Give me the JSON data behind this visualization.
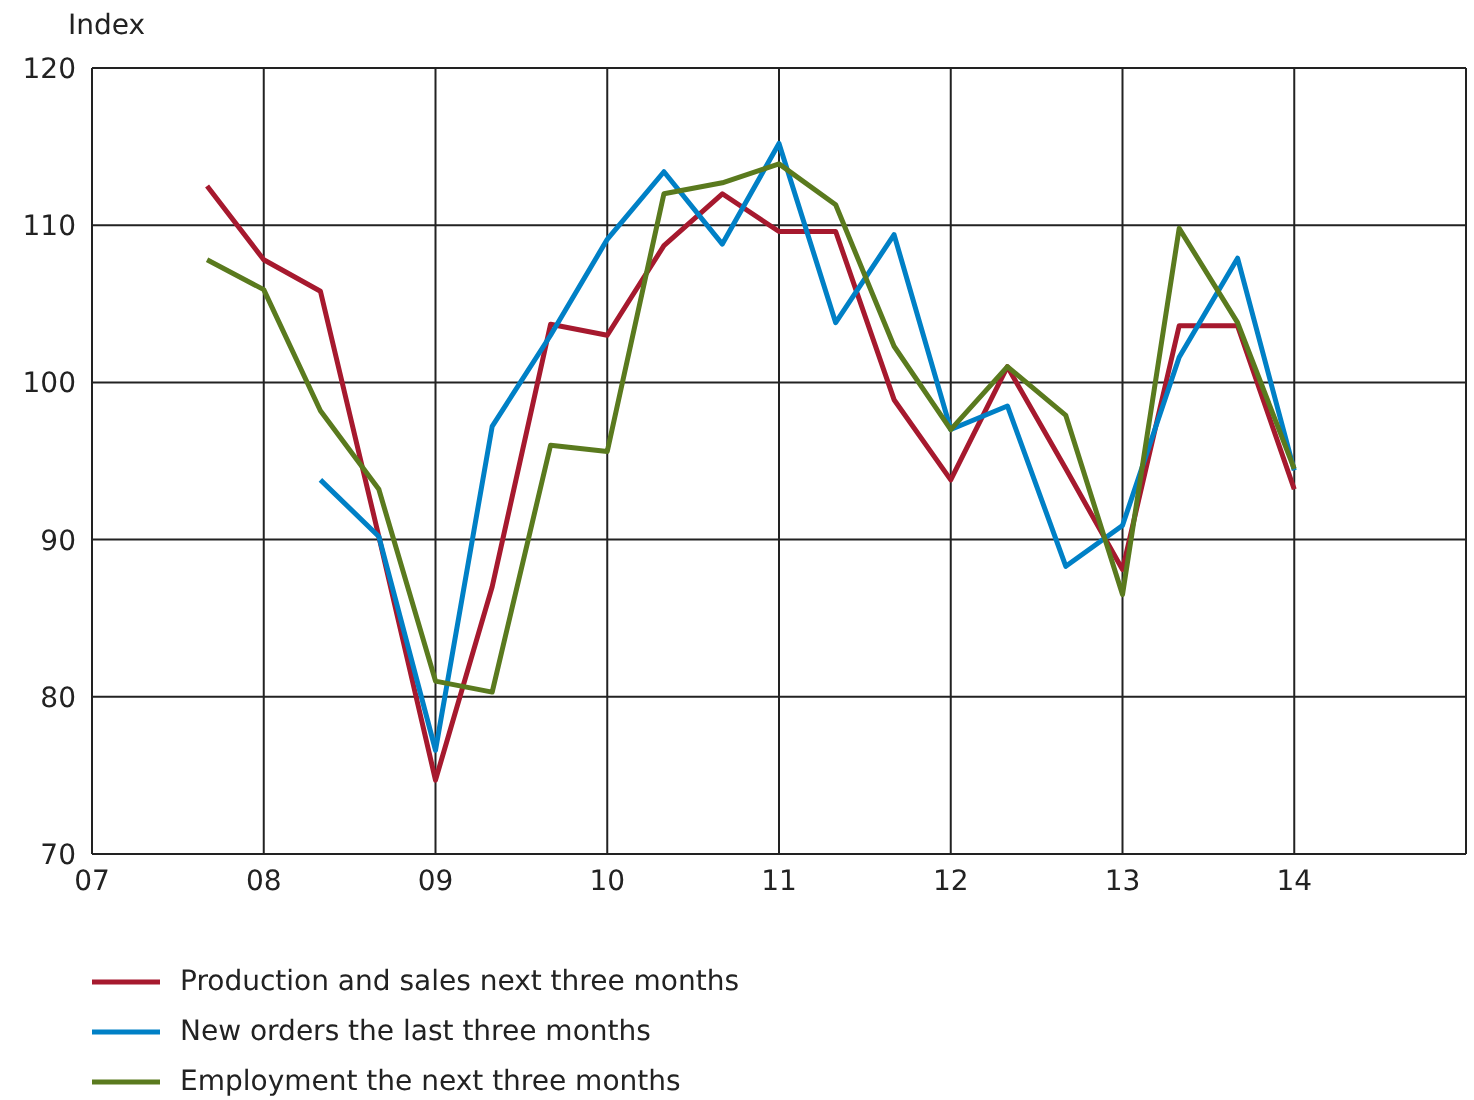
{
  "chart_data": {
    "type": "line",
    "ylabel": "Index",
    "x": [
      2007.67,
      2008.0,
      2008.33,
      2008.67,
      2009.0,
      2009.33,
      2009.67,
      2010.0,
      2010.33,
      2010.67,
      2011.0,
      2011.33,
      2011.67,
      2012.0,
      2012.33,
      2012.67,
      2013.0,
      2013.33,
      2013.67,
      2014.0
    ],
    "series": [
      {
        "name": "Production and sales next three months",
        "color": "#a6192e",
        "values": [
          112.5,
          107.8,
          105.8,
          90.2,
          74.7,
          87.0,
          103.7,
          103.0,
          108.7,
          112.0,
          109.6,
          109.6,
          98.9,
          93.8,
          101.0,
          94.5,
          88.1,
          103.6,
          103.6,
          93.2
        ]
      },
      {
        "name": "New orders the last three months",
        "color": "#0080c6",
        "values": [
          null,
          null,
          93.8,
          90.2,
          76.6,
          97.2,
          103.0,
          109.1,
          113.4,
          108.8,
          115.2,
          103.8,
          109.4,
          97.0,
          98.5,
          88.3,
          90.9,
          101.6,
          107.9,
          94.4
        ]
      },
      {
        "name": "Employment the next three months",
        "color": "#5a7a1e",
        "values": [
          107.8,
          105.9,
          98.2,
          93.2,
          81.0,
          80.3,
          96.0,
          95.6,
          112.0,
          112.7,
          113.9,
          111.3,
          102.3,
          97.0,
          101.0,
          97.9,
          86.5,
          109.8,
          103.8,
          94.5
        ]
      }
    ],
    "xlim": [
      2007,
      2015
    ],
    "xticks": [
      {
        "value": 2007,
        "label": "07"
      },
      {
        "value": 2008,
        "label": "08"
      },
      {
        "value": 2009,
        "label": "09"
      },
      {
        "value": 2010,
        "label": "10"
      },
      {
        "value": 2011,
        "label": "11"
      },
      {
        "value": 2012,
        "label": "12"
      },
      {
        "value": 2013,
        "label": "13"
      },
      {
        "value": 2014,
        "label": "14"
      },
      {
        "value": 2015,
        "label": null
      }
    ],
    "ylim": [
      70,
      120
    ],
    "yticks": [
      70,
      80,
      90,
      100,
      110,
      120
    ],
    "grid": true,
    "legend": "bottom",
    "marker": "none",
    "line_style": "solid"
  }
}
